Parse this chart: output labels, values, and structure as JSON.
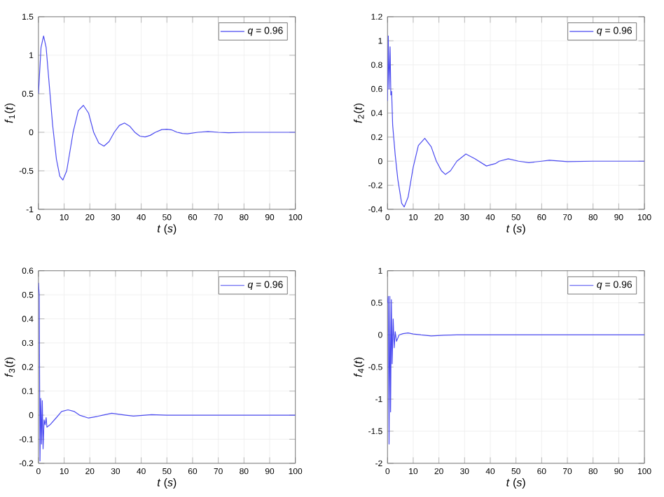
{
  "chart_data": [
    {
      "type": "line",
      "xlabel": "*t* (*s*)",
      "ylabel": "*f*$_{1}$(*t*)",
      "xlim": [
        0,
        100
      ],
      "xticks": [
        0,
        10,
        20,
        30,
        40,
        50,
        60,
        70,
        80,
        90,
        100
      ],
      "ylim": [
        -1,
        1.5
      ],
      "yticks": [
        -1,
        -0.5,
        0,
        0.5,
        1,
        1.5
      ],
      "grid": true,
      "legend": "top right",
      "x": [
        0,
        1,
        2,
        3,
        4,
        5.5,
        7,
        8.3,
        9.5,
        11,
        13.5,
        15.5,
        17.5,
        19.5,
        21.5,
        23.5,
        25.5,
        27.5,
        29.5,
        31.5,
        33.5,
        35.5,
        37.5,
        39.5,
        41.5,
        43.5,
        45.5,
        48,
        50,
        52,
        54,
        56,
        58,
        62,
        66,
        70,
        74,
        80,
        90,
        100
      ],
      "series": [
        {
          "name": "*q* = 0.96",
          "color": "#4a4af0",
          "values": [
            0.5,
            1.1,
            1.25,
            1.1,
            0.7,
            0.1,
            -0.35,
            -0.57,
            -0.62,
            -0.5,
            0,
            0.28,
            0.35,
            0.25,
            0,
            -0.14,
            -0.18,
            -0.12,
            0,
            0.09,
            0.12,
            0.08,
            0,
            -0.05,
            -0.06,
            -0.04,
            0,
            0.035,
            0.04,
            0.03,
            0,
            -0.015,
            -0.02,
            0,
            0.01,
            0,
            -0.005,
            0,
            0,
            0
          ]
        }
      ]
    },
    {
      "type": "line",
      "xlabel": "*t* (*s*)",
      "ylabel": "*f*$_{2}$(*t*)",
      "xlim": [
        0,
        100
      ],
      "xticks": [
        0,
        10,
        20,
        30,
        40,
        50,
        60,
        70,
        80,
        90,
        100
      ],
      "ylim": [
        -0.4,
        1.2
      ],
      "yticks": [
        -0.4,
        -0.2,
        0,
        0.2,
        0.4,
        0.6,
        0.8,
        1,
        1.2
      ],
      "grid": true,
      "legend": "top right",
      "x": [
        0,
        0.3,
        0.6,
        1,
        1.3,
        1.6,
        2,
        3,
        4,
        5.5,
        6.5,
        8,
        10,
        12,
        14.5,
        17,
        19,
        21,
        22.5,
        24.5,
        27,
        30.5,
        34,
        35.5,
        38.5,
        42,
        43.5,
        47,
        51,
        55,
        60,
        63,
        70,
        80,
        100
      ],
      "series": [
        {
          "name": "*q* = 0.96",
          "color": "#4a4af0",
          "values": [
            0.5,
            1.04,
            0.6,
            0.95,
            0.55,
            0.58,
            0.3,
            0.05,
            -0.15,
            -0.35,
            -0.38,
            -0.3,
            -0.05,
            0.13,
            0.19,
            0.12,
            0,
            -0.08,
            -0.11,
            -0.08,
            0,
            0.06,
            0.02,
            0,
            -0.04,
            -0.02,
            0,
            0.02,
            0,
            -0.012,
            0,
            0.008,
            -0.004,
            0,
            0
          ]
        }
      ]
    },
    {
      "type": "line",
      "xlabel": "*t* (*s*)",
      "ylabel": "*f*$_{3}$(*t*)",
      "xlim": [
        0,
        100
      ],
      "xticks": [
        0,
        10,
        20,
        30,
        40,
        50,
        60,
        70,
        80,
        90,
        100
      ],
      "ylim": [
        -0.2,
        0.6
      ],
      "yticks": [
        -0.2,
        -0.1,
        0,
        0.1,
        0.2,
        0.3,
        0.4,
        0.5,
        0.6
      ],
      "grid": true,
      "legend": "top right",
      "x": [
        0,
        0.3,
        0.6,
        0.9,
        1.2,
        1.5,
        1.8,
        2.2,
        2.6,
        3,
        3.3,
        4.5,
        7,
        9,
        11.5,
        14,
        16,
        19.5,
        23,
        25,
        28.5,
        32,
        34,
        37,
        44,
        50,
        100
      ],
      "series": [
        {
          "name": "*q* = 0.96",
          "color": "#4a4af0",
          "values": [
            0.55,
            0.5,
            -0.19,
            0.07,
            -0.12,
            0.06,
            -0.14,
            -0.02,
            -0.04,
            -0.01,
            -0.05,
            -0.04,
            -0.01,
            0.015,
            0.022,
            0.015,
            0,
            -0.012,
            -0.005,
            0,
            0.008,
            0.003,
            0,
            -0.004,
            0.002,
            0,
            0
          ]
        }
      ]
    },
    {
      "type": "line",
      "xlabel": "*t* (*s*)",
      "ylabel": "*f*$_{4}$(*t*)",
      "xlim": [
        0,
        100
      ],
      "xticks": [
        0,
        10,
        20,
        30,
        40,
        50,
        60,
        70,
        80,
        90,
        100
      ],
      "ylim": [
        -2,
        1
      ],
      "yticks": [
        -2,
        -1.5,
        -1,
        -0.5,
        0,
        0.5,
        1
      ],
      "grid": true,
      "legend": "top right",
      "x": [
        0,
        0.3,
        0.6,
        0.9,
        1.2,
        1.5,
        1.8,
        2.2,
        2.6,
        3,
        3.5,
        4.5,
        6,
        8,
        10,
        13,
        17,
        22,
        27,
        100
      ],
      "series": [
        {
          "name": "*q* = 0.96",
          "color": "#4a4af0",
          "values": [
            0.5,
            0.6,
            -1.7,
            0.6,
            -1.2,
            0.55,
            -0.45,
            0.25,
            -0.2,
            0.05,
            -0.1,
            0,
            0.02,
            0.03,
            0.015,
            0,
            -0.015,
            -0.005,
            0,
            0
          ]
        }
      ]
    }
  ]
}
